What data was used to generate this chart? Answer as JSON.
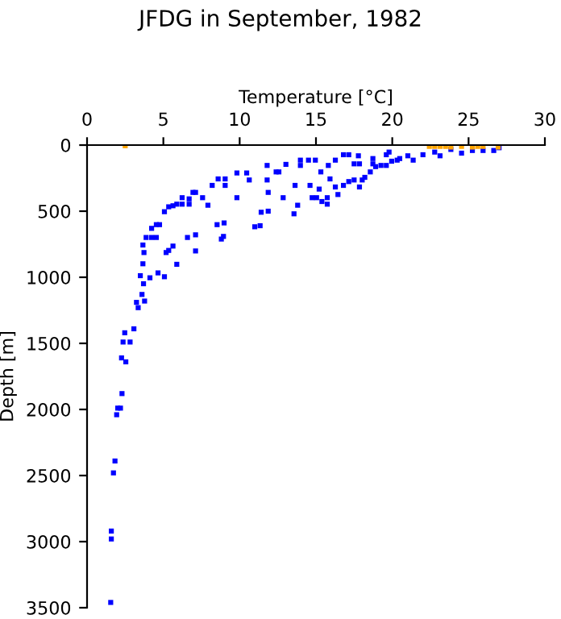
{
  "chart_data": {
    "type": "scatter",
    "title": "JFDG in September, 1982",
    "xlabel": "Temperature [°C]",
    "ylabel": "Depth [m]",
    "xlim": [
      0,
      30
    ],
    "xticks": [
      0,
      5,
      10,
      15,
      20,
      25,
      30
    ],
    "ylim": [
      3500,
      0
    ],
    "yticks": [
      0,
      500,
      1000,
      1500,
      2000,
      2500,
      3000,
      3500
    ],
    "grid": false,
    "legend": false,
    "marker": "square",
    "series": [
      {
        "color": "#0000ff",
        "x": [
          3.6,
          3.24,
          3.77,
          3.35,
          3.07,
          2.47,
          2.36,
          2.82,
          2.26,
          2.54,
          2.29,
          2.01,
          2.19,
          1.94,
          1.83,
          1.73,
          1.59,
          1.59,
          1.55,
          3.7,
          3.66,
          3.49,
          4.12,
          4.65,
          5.07,
          4.23,
          3.87,
          3.66,
          3.73,
          4.23,
          4.54,
          4.75,
          4.54,
          5.18,
          5.35,
          5.88,
          5.63,
          5.07,
          5.35,
          5.63,
          5.88,
          6.23,
          6.69,
          6.69,
          6.23,
          6.94,
          7.11,
          7.57,
          7.92,
          6.58,
          7.11,
          7.11,
          8.2,
          8.59,
          9.05,
          9.05,
          8.52,
          8.98,
          8.8,
          8.94,
          9.82,
          9.82,
          10.46,
          10.63,
          10.99,
          11.34,
          11.41,
          11.87,
          11.87,
          11.8,
          11.8,
          12.39,
          12.57,
          12.85,
          13.03,
          13.63,
          13.56,
          13.8,
          13.98,
          13.98,
          14.51,
          14.96,
          14.61,
          14.75,
          15.04,
          15.21,
          15.74,
          15.92,
          15.81,
          16.27,
          16.8,
          17.15,
          17.5,
          17.85,
          17.78,
          15.32,
          16.27,
          16.44,
          16.8,
          17.15,
          17.5,
          17.85,
          18.03,
          18.2,
          18.56,
          18.73,
          18.73,
          18.91,
          19.26,
          19.61,
          19.96,
          20.32,
          19.61,
          19.79,
          20.49,
          21.02,
          21.37,
          22.01,
          22.78,
          23.13,
          23.84,
          24.54,
          25.25,
          25.95,
          26.65,
          27.0,
          15.39,
          15.74
        ],
        "values": [
          1130,
          1190,
          1180,
          1230,
          1390,
          1420,
          1490,
          1490,
          1610,
          1640,
          1880,
          1990,
          1990,
          2040,
          2390,
          2480,
          2920,
          2980,
          3460,
          1049,
          898,
          988,
          1004,
          967,
          996,
          699,
          699,
          756,
          813,
          630,
          602,
          602,
          699,
          813,
          797,
          902,
          764,
          504,
          467,
          459,
          447,
          447,
          407,
          447,
          398,
          358,
          358,
          398,
          455,
          699,
          679,
          801,
          305,
          256,
          256,
          305,
          602,
          589,
          711,
          691,
          398,
          211,
          211,
          264,
          618,
          610,
          508,
          500,
          358,
          264,
          154,
          203,
          203,
          398,
          146,
          305,
          520,
          455,
          154,
          114,
          114,
          114,
          305,
          398,
          398,
          333,
          398,
          256,
          154,
          114,
          73,
          73,
          142,
          142,
          81,
          203,
          317,
          374,
          305,
          276,
          264,
          317,
          264,
          244,
          203,
          142,
          102,
          163,
          154,
          154,
          122,
          114,
          73,
          53,
          102,
          81,
          114,
          73,
          53,
          81,
          33,
          61,
          41,
          41,
          41,
          20,
          427,
          447
        ]
      },
      {
        "color": "#ffa500",
        "x": [
          2.5,
          22.43,
          22.78,
          23.13,
          23.49,
          23.84,
          24.54,
          25.25,
          25.6,
          25.95,
          26.94
        ],
        "values": [
          5,
          10,
          10,
          10,
          10,
          15,
          10,
          15,
          10,
          10,
          15
        ]
      }
    ]
  }
}
